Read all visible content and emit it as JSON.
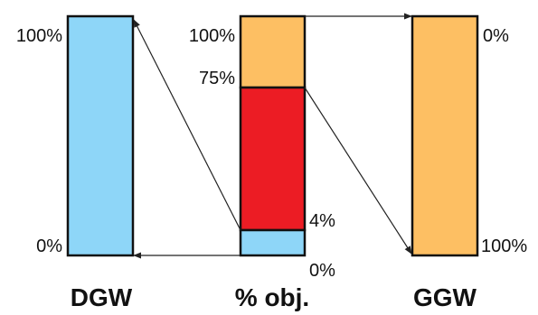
{
  "colors": {
    "blue": "#8ed6f8",
    "orange": "#fdbf63",
    "red": "#ec1c24",
    "outline": "#111111"
  },
  "bars": {
    "dgw": {
      "title": "DGW",
      "top_label": "100%",
      "bottom_label": "0%"
    },
    "obj": {
      "title": "% obj.",
      "top_label": "100%",
      "upper_split_label": "75%",
      "lower_split_label": "4%",
      "bottom_label": "0%",
      "segments": [
        {
          "name": "lower",
          "from_pct": 0,
          "to_pct": 4,
          "color": "blue"
        },
        {
          "name": "middle",
          "from_pct": 4,
          "to_pct": 75,
          "color": "red"
        },
        {
          "name": "upper",
          "from_pct": 75,
          "to_pct": 100,
          "color": "orange"
        }
      ]
    },
    "ggw": {
      "title": "GGW",
      "top_label": "0%",
      "bottom_label": "100%"
    }
  },
  "arrows": [
    {
      "name": "obj-4pct-to-dgw-top",
      "from": "obj.4%",
      "to": "dgw.100%"
    },
    {
      "name": "obj-0pct-to-dgw-bottom",
      "from": "obj.0%",
      "to": "dgw.0%"
    },
    {
      "name": "obj-100pct-to-ggw-top",
      "from": "obj.100%",
      "to": "ggw.0%"
    },
    {
      "name": "obj-75pct-to-ggw-bottom",
      "from": "obj.75%",
      "to": "ggw.100%"
    }
  ]
}
